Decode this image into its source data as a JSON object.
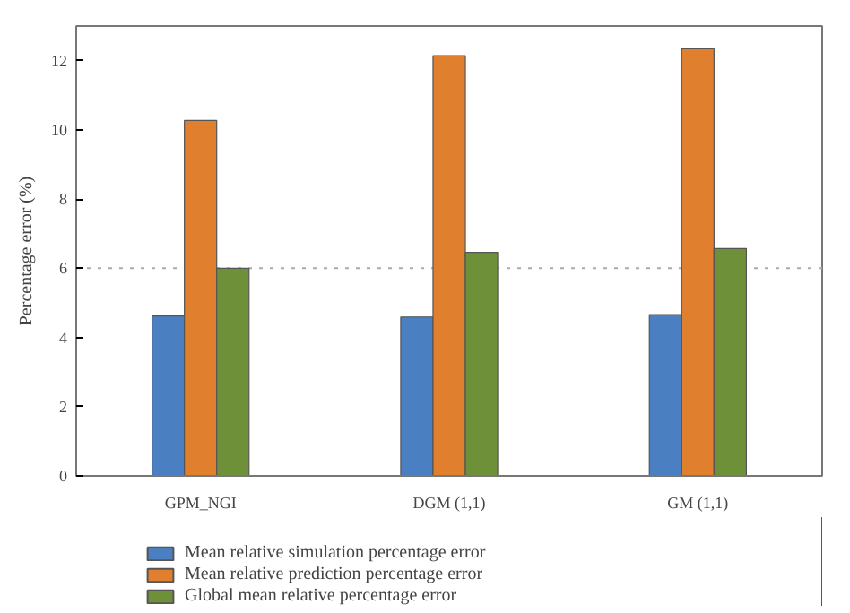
{
  "chart_data": {
    "type": "bar",
    "ylabel": "Percentage error (%)",
    "categories": [
      "GPM_NGI",
      "DGM (1,1)",
      "GM (1,1)"
    ],
    "series": [
      {
        "name": "Mean relative simulation percentage error",
        "color": "#4a7fc1",
        "values": [
          4.62,
          4.59,
          4.66
        ]
      },
      {
        "name": "Mean relative prediction percentage error",
        "color": "#e07f2e",
        "values": [
          10.27,
          12.14,
          12.34
        ]
      },
      {
        "name": "Global mean relative percentage error",
        "color": "#6e9038",
        "values": [
          6.0,
          6.46,
          6.57
        ]
      }
    ],
    "ylim": [
      0,
      13
    ],
    "yticks": [
      0,
      2,
      4,
      6,
      8,
      10,
      12
    ],
    "grid": false,
    "legend": "bottom",
    "ref_lines": [
      {
        "axis": "y",
        "value": 6,
        "color": "#aaaaaa",
        "line_style": "dotted"
      }
    ]
  }
}
